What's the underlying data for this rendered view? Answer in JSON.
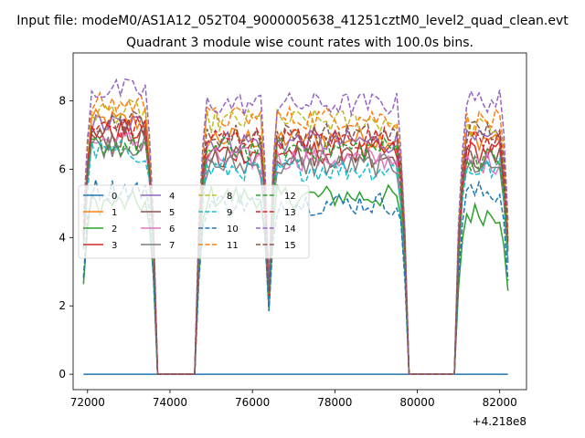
{
  "suptitle": "Input file: modeM0/AS1A12_052T04_9000005638_41251cztM0_level2_quad_clean.evt",
  "chart_data": {
    "type": "line",
    "title": "Quadrant 3 module wise count rates with 100.0s bins.",
    "xlabel": "",
    "ylabel": "",
    "x_offset_label": "+4.218e8",
    "xlim": [
      71650,
      82650
    ],
    "ylim": [
      -0.45,
      9.4
    ],
    "xticks": [
      72000,
      74000,
      76000,
      78000,
      80000,
      82000
    ],
    "xtick_labels": [
      "72000",
      "74000",
      "76000",
      "78000",
      "80000",
      "82000"
    ],
    "yticks": [
      0,
      2,
      4,
      6,
      8
    ],
    "ytick_labels": [
      "0",
      "2",
      "4",
      "6",
      "8"
    ],
    "legend_position": "center-left",
    "legend_columns": 4,
    "grid": false,
    "x_start": 71900,
    "x_end": 82200,
    "bin_seconds": 100,
    "on_intervals": [
      [
        71900,
        73600
      ],
      [
        74700,
        79700
      ],
      [
        81000,
        82200
      ]
    ],
    "dips": [
      {
        "center": 76400,
        "half_width": 150,
        "depth": 0.35
      }
    ],
    "series": [
      {
        "name": "0",
        "color": "#1f77b4",
        "style": "solid",
        "levels": [
          0,
          0,
          0
        ]
      },
      {
        "name": "1",
        "color": "#ff7f0e",
        "style": "solid",
        "levels": [
          7.4,
          6.9,
          6.9
        ]
      },
      {
        "name": "2",
        "color": "#2ca02c",
        "style": "solid",
        "levels": [
          5.0,
          5.2,
          4.7
        ]
      },
      {
        "name": "3",
        "color": "#d62728",
        "style": "solid",
        "levels": [
          7.1,
          6.5,
          6.5
        ]
      },
      {
        "name": "4",
        "color": "#9467bd",
        "style": "solid",
        "levels": [
          7.3,
          6.8,
          6.8
        ]
      },
      {
        "name": "5",
        "color": "#8c564b",
        "style": "solid",
        "levels": [
          6.9,
          6.4,
          6.3
        ]
      },
      {
        "name": "6",
        "color": "#e377c2",
        "style": "solid",
        "levels": [
          6.8,
          6.3,
          6.2
        ]
      },
      {
        "name": "7",
        "color": "#7f7f7f",
        "style": "solid",
        "levels": [
          6.7,
          6.1,
          6.1
        ]
      },
      {
        "name": "8",
        "color": "#bcbd22",
        "style": "dashed",
        "levels": [
          7.7,
          7.4,
          7.2
        ]
      },
      {
        "name": "9",
        "color": "#17becf",
        "style": "dashed",
        "levels": [
          6.5,
          6.0,
          6.0
        ]
      },
      {
        "name": "10",
        "color": "#1f77b4",
        "style": "dashed",
        "levels": [
          5.4,
          5.0,
          5.3
        ]
      },
      {
        "name": "11",
        "color": "#ff7f0e",
        "style": "dashed",
        "levels": [
          7.9,
          7.5,
          7.4
        ]
      },
      {
        "name": "12",
        "color": "#2ca02c",
        "style": "dashed",
        "levels": [
          6.7,
          6.6,
          6.3
        ]
      },
      {
        "name": "13",
        "color": "#d62728",
        "style": "dashed",
        "levels": [
          7.2,
          6.9,
          6.8
        ]
      },
      {
        "name": "14",
        "color": "#9467bd",
        "style": "dashed",
        "levels": [
          8.3,
          7.9,
          8.0
        ]
      },
      {
        "name": "15",
        "color": "#8c564b",
        "style": "dashed",
        "levels": [
          7.4,
          7.0,
          7.1
        ]
      }
    ]
  }
}
